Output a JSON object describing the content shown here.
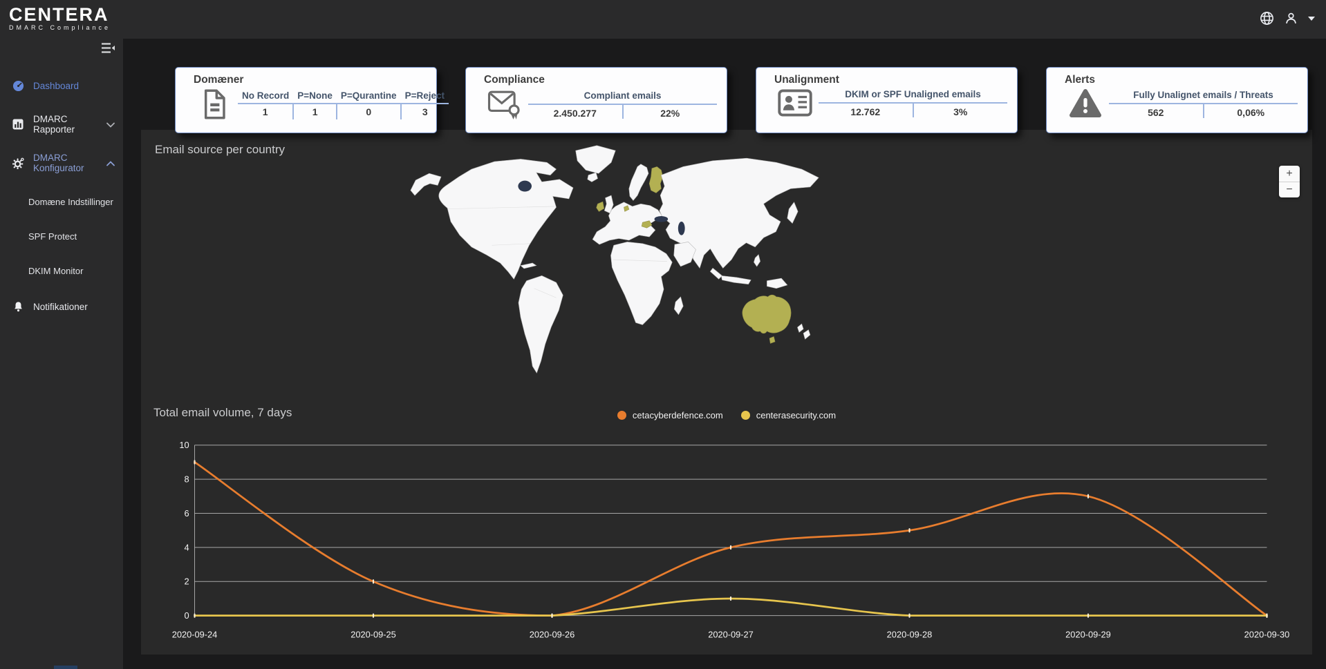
{
  "brand": {
    "name": "CENTERA",
    "tagline": "DMARC Compliance"
  },
  "theme": {
    "accent_blue": "#6487d8",
    "accent_blue_soft": "#8b9fd6",
    "card_border": "#6d89c2",
    "card_divider": "#9db5e0",
    "header_text": "#44546a",
    "olive": "#b3b052",
    "panel_bg": "#292929",
    "sidebar_bg": "#2a2a2b",
    "content_bg": "#1a1a1b"
  },
  "sidebar": {
    "items": [
      {
        "label": "Dashboard"
      },
      {
        "label": "DMARC Rapporter"
      },
      {
        "label": "DMARC Konfigurator"
      },
      {
        "label": "Domæne Indstillinger"
      },
      {
        "label": "SPF Protect"
      },
      {
        "label": "DKIM Monitor"
      },
      {
        "label": "Notifikationer"
      }
    ]
  },
  "cards": {
    "domains": {
      "title": "Domæner",
      "icon": "document-icon",
      "columns": [
        "No Record",
        "P=None",
        "P=Qurantine",
        "P=Reject"
      ],
      "values": [
        "1",
        "1",
        "0",
        "3"
      ]
    },
    "compliance": {
      "title": "Compliance",
      "icon": "certified-mail-icon",
      "header": "Compliant emails",
      "values": [
        "2.450.277",
        "22%"
      ]
    },
    "unalignment": {
      "title": "Unalignment",
      "icon": "id-card-icon",
      "header": "DKIM or SPF Unaligned emails",
      "values": [
        "12.762",
        "3%"
      ]
    },
    "alerts": {
      "title": "Alerts",
      "icon": "warning-icon",
      "header": "Fully Unalignet emails / Threats",
      "values": [
        "562",
        "0,06%"
      ]
    }
  },
  "map": {
    "title": "Email source per country",
    "zoom_in": "+",
    "zoom_out": "−",
    "highlighted_countries": [
      "Ireland",
      "Netherlands",
      "Hungary",
      "Finland",
      "Australia"
    ],
    "country_color": "#f7f7f8",
    "highlight_color": "#b3b052"
  },
  "chart_data": {
    "type": "line",
    "title": "Total email volume, 7 days",
    "x": [
      "2020-09-24",
      "2020-09-25",
      "2020-09-26",
      "2020-09-27",
      "2020-09-28",
      "2020-09-29",
      "2020-09-30"
    ],
    "series": [
      {
        "name": "cetacyberdefence.com",
        "color": "#e87d2e",
        "values": [
          9,
          2,
          0,
          4,
          5,
          7,
          0
        ]
      },
      {
        "name": "centerasecurity.com",
        "color": "#e7c54d",
        "values": [
          0,
          0,
          0,
          1,
          0,
          0,
          0
        ]
      }
    ],
    "ylim": [
      0,
      10
    ],
    "yticks": [
      0,
      2,
      4,
      6,
      8,
      10
    ],
    "grid": true,
    "legend_position": "top-center"
  }
}
